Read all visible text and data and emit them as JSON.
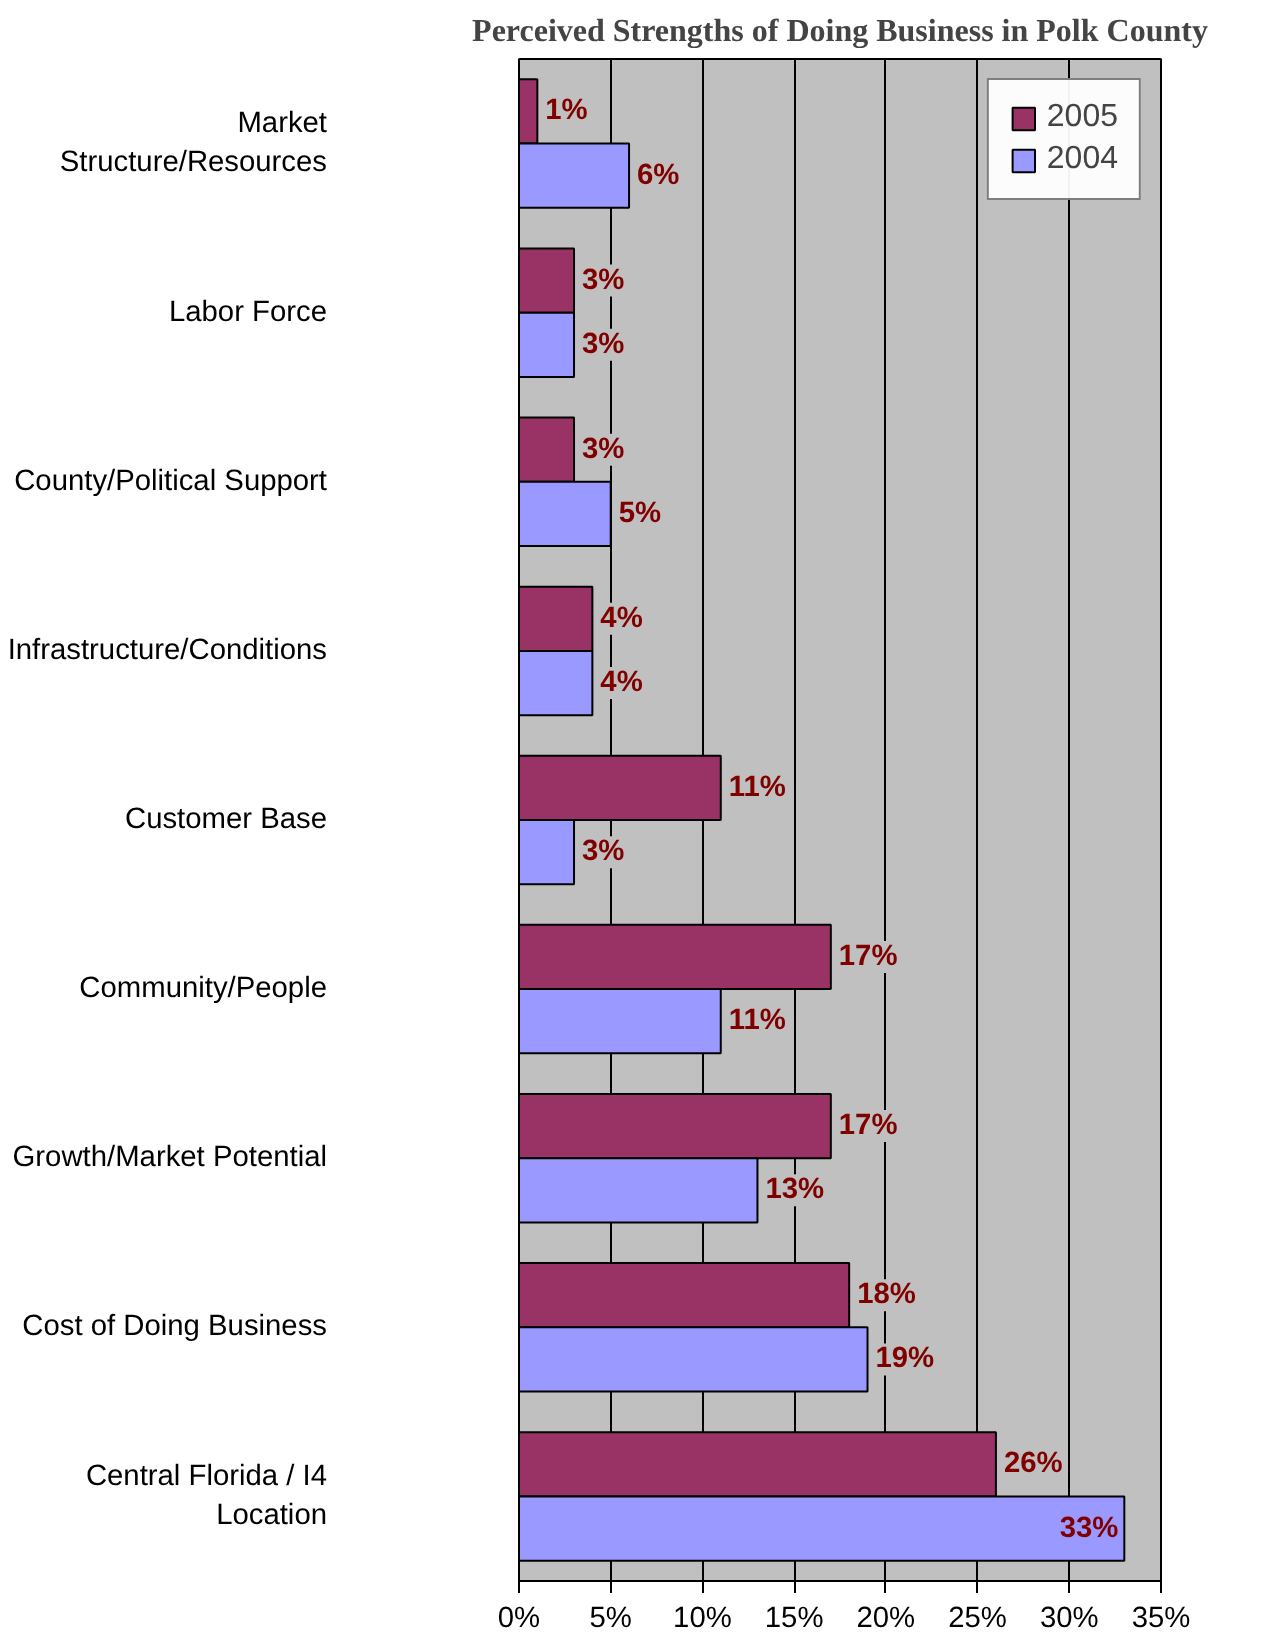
{
  "chart_data": {
    "type": "bar",
    "orientation": "horizontal",
    "title": "Perceived Strengths of Doing Business in Polk County",
    "categories": [
      "Market\nStructure/Resources",
      "Labor Force",
      "County/Political Support",
      "Infrastructure/Conditions",
      "Customer Base",
      "Community/People",
      "Growth/Market Potential",
      "Cost of Doing Business",
      "Central Florida / I4\nLocation"
    ],
    "series": [
      {
        "name": "2005",
        "color": "#993366",
        "values": [
          1,
          3,
          3,
          4,
          11,
          17,
          17,
          18,
          26
        ],
        "value_labels": [
          "1%",
          "3%",
          "3%",
          "4%",
          "11%",
          "17%",
          "17%",
          "18%",
          "26%"
        ]
      },
      {
        "name": "2004",
        "color": "#9999ff",
        "values": [
          6,
          3,
          5,
          4,
          3,
          11,
          13,
          19,
          33
        ],
        "value_labels": [
          "6%",
          "3%",
          "5%",
          "4%",
          "3%",
          "11%",
          "13%",
          "19%",
          "33%"
        ]
      }
    ],
    "xlim": [
      0,
      35
    ],
    "xticks": [
      {
        "value": 0,
        "label": "0%"
      },
      {
        "value": 5,
        "label": "5%"
      },
      {
        "value": 10,
        "label": "10%"
      },
      {
        "value": 15,
        "label": "15%"
      },
      {
        "value": 20,
        "label": "20%"
      },
      {
        "value": 25,
        "label": "25%"
      },
      {
        "value": 30,
        "label": "30%"
      },
      {
        "value": 35,
        "label": "35%"
      }
    ],
    "grid": "x",
    "legend": "top right"
  }
}
